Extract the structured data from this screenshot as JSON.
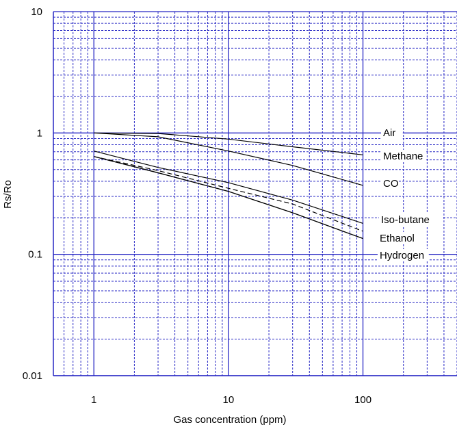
{
  "chart_data": {
    "type": "line",
    "x_scale": "log",
    "y_scale": "log",
    "xlim": [
      0.5,
      500
    ],
    "ylim": [
      0.01,
      10
    ],
    "grid": true,
    "legend": "inline-right",
    "colors": {
      "grid": "#2626c4",
      "series": "#000000",
      "background": "#ffffff"
    },
    "xlabel": "Gas concentration (ppm)",
    "ylabel": "Rs/Ro",
    "x_ticks": [
      {
        "value": 1,
        "label": "1"
      },
      {
        "value": 10,
        "label": "10"
      },
      {
        "value": 100,
        "label": "100"
      }
    ],
    "y_ticks": [
      {
        "value": 10,
        "label": "10"
      },
      {
        "value": 1,
        "label": "1"
      },
      {
        "value": 0.1,
        "label": "0.1"
      },
      {
        "value": 0.01,
        "label": "0.01"
      }
    ],
    "series": [
      {
        "name": "Air",
        "dash": "solid",
        "x": [
          1,
          3,
          10,
          30,
          100
        ],
        "y": [
          1.0,
          0.99,
          0.89,
          0.77,
          0.66
        ]
      },
      {
        "name": "Methane",
        "dash": "solid",
        "x": [
          1,
          3,
          10,
          30,
          100
        ],
        "y": [
          1.0,
          0.93,
          0.71,
          0.54,
          0.37
        ]
      },
      {
        "name": "CO",
        "dash": "solid",
        "x": [
          1,
          3,
          10,
          30,
          100
        ],
        "y": [
          0.71,
          0.52,
          0.39,
          0.28,
          0.18
        ]
      },
      {
        "name": "Iso-butane",
        "dash": "dashed",
        "x": [
          1,
          3,
          10,
          30,
          100
        ],
        "y": [
          0.64,
          0.49,
          0.35,
          0.26,
          0.155
        ]
      },
      {
        "name": "Ethanol",
        "dash": "solid",
        "x": [
          1,
          3,
          10,
          30,
          100
        ],
        "y": [
          0.64,
          0.47,
          0.33,
          0.22,
          0.135
        ]
      },
      {
        "name": "Hydrogen",
        "dash": "solid",
        "x": [
          1,
          3,
          10,
          30,
          100
        ],
        "y": [
          0.64,
          0.47,
          0.33,
          0.22,
          0.135
        ]
      }
    ],
    "series_labels": [
      "Air",
      "Methane",
      "CO",
      "Iso-butane",
      "Ethanol",
      "Hydrogen"
    ]
  }
}
